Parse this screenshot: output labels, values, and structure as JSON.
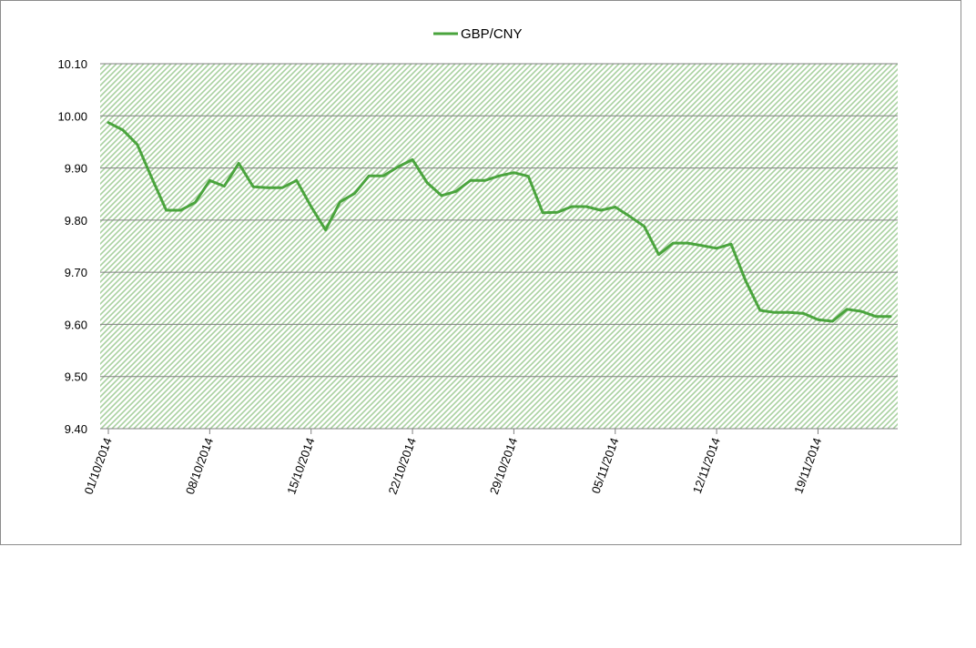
{
  "chart_data": {
    "type": "line",
    "legend_position": "top-center",
    "grid": true,
    "plot_fill": "hatched-green",
    "colors": {
      "line": "#4aa43d",
      "hatch": "#a9d1a0",
      "grid": "#808080",
      "frame": "#8c8c8c"
    },
    "xlabel": "",
    "ylabel": "",
    "ylim": [
      9.4,
      10.1
    ],
    "y_ticks": [
      "10.10",
      "10.00",
      "9.90",
      "9.80",
      "9.70",
      "9.60",
      "9.50",
      "9.40"
    ],
    "x_tick_labels": [
      "01/10/2014",
      "08/10/2014",
      "15/10/2014",
      "22/10/2014",
      "29/10/2014",
      "05/11/2014",
      "12/11/2014",
      "19/11/2014"
    ],
    "x_range": [
      "2014-10-01",
      "2014-11-24"
    ],
    "series": [
      {
        "name": "GBP/CNY",
        "x": [
          "2014-10-01",
          "2014-10-02",
          "2014-10-03",
          "2014-10-04",
          "2014-10-05",
          "2014-10-06",
          "2014-10-07",
          "2014-10-08",
          "2014-10-09",
          "2014-10-10",
          "2014-10-11",
          "2014-10-12",
          "2014-10-13",
          "2014-10-14",
          "2014-10-15",
          "2014-10-16",
          "2014-10-17",
          "2014-10-18",
          "2014-10-19",
          "2014-10-20",
          "2014-10-21",
          "2014-10-22",
          "2014-10-23",
          "2014-10-24",
          "2014-10-25",
          "2014-10-26",
          "2014-10-27",
          "2014-10-28",
          "2014-10-29",
          "2014-10-30",
          "2014-10-31",
          "2014-11-01",
          "2014-11-02",
          "2014-11-03",
          "2014-11-04",
          "2014-11-05",
          "2014-11-06",
          "2014-11-07",
          "2014-11-08",
          "2014-11-09",
          "2014-11-10",
          "2014-11-11",
          "2014-11-12",
          "2014-11-13",
          "2014-11-14",
          "2014-11-15",
          "2014-11-16",
          "2014-11-17",
          "2014-11-18",
          "2014-11-19",
          "2014-11-20",
          "2014-11-21",
          "2014-11-22",
          "2014-11-23",
          "2014-11-24"
        ],
        "values": [
          9.987,
          9.973,
          9.945,
          9.881,
          9.819,
          9.819,
          9.834,
          9.876,
          9.865,
          9.909,
          9.864,
          9.862,
          9.862,
          9.876,
          9.826,
          9.781,
          9.835,
          9.851,
          9.885,
          9.885,
          9.902,
          9.916,
          9.872,
          9.847,
          9.855,
          9.876,
          9.876,
          9.885,
          9.891,
          9.884,
          9.814,
          9.815,
          9.826,
          9.826,
          9.819,
          9.825,
          9.807,
          9.788,
          9.734,
          9.756,
          9.756,
          9.751,
          9.746,
          9.754,
          9.684,
          9.627,
          9.623,
          9.623,
          9.621,
          9.609,
          9.606,
          9.629,
          9.625,
          9.615,
          9.615
        ]
      }
    ]
  }
}
